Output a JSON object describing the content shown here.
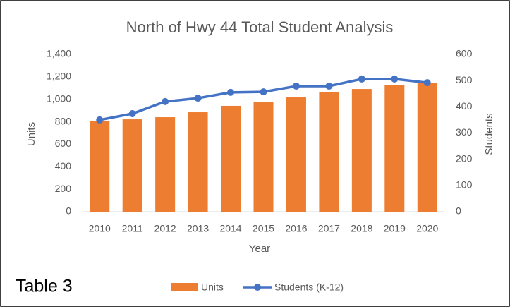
{
  "chart_data": {
    "type": "bar_line",
    "title": "North of Hwy 44 Total Student Analysis",
    "annotation": "Table 3",
    "xlabel": "Year",
    "ylabel": "Units",
    "y2label": "Students",
    "categories": [
      "2010",
      "2011",
      "2012",
      "2013",
      "2014",
      "2015",
      "2016",
      "2017",
      "2018",
      "2019",
      "2020"
    ],
    "series": [
      {
        "name": "Units",
        "kind": "bar",
        "color": "#ed7d31",
        "values": [
          805,
          822,
          841,
          885,
          942,
          979,
          1017,
          1061,
          1092,
          1124,
          1149
        ]
      },
      {
        "name": "Students (K-12)",
        "kind": "line",
        "axis": "y2",
        "color": "#4472c4",
        "values": [
          350,
          374,
          420,
          433,
          455,
          457,
          479,
          479,
          506,
          506,
          492
        ]
      }
    ],
    "ylim": [
      0,
      1400
    ],
    "yticks": [
      0,
      200,
      400,
      600,
      800,
      {
        "value": 1000,
        "label": "1,000"
      },
      {
        "value": 1200,
        "label": "1,200"
      },
      {
        "value": 1400,
        "label": "1,400"
      }
    ],
    "y2lim": [
      0,
      600
    ],
    "y2ticks": [
      0,
      100,
      200,
      300,
      400,
      500,
      600
    ],
    "grid": false,
    "legend": "bottom"
  }
}
